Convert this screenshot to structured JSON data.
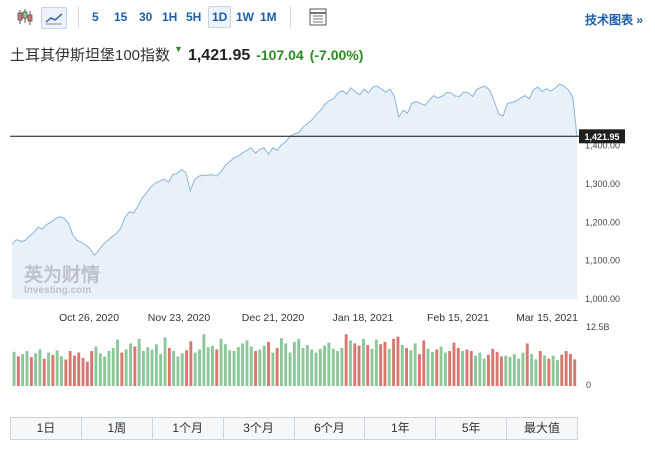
{
  "toolbar": {
    "intervals": [
      "5",
      "15",
      "30",
      "1H",
      "5H",
      "1D",
      "1W",
      "1M"
    ],
    "active_interval": "1D",
    "tech_chart_link": "技术图表 »"
  },
  "instrument": {
    "name": "土耳其伊斯坦堡100指数",
    "direction_icon": "down-arrow-icon",
    "price": "1,421.95",
    "change": "-107.04",
    "change_pct": "(-7.00%)",
    "down_color": "#2e8a22"
  },
  "watermark": {
    "brand": "英为财情",
    "sub": "Investing.com"
  },
  "range_buttons": [
    "1日",
    "1周",
    "1个月",
    "3个月",
    "6个月",
    "1年",
    "5年",
    "最大值"
  ],
  "chart_data": {
    "type": "area",
    "x_tick_labels": [
      "Oct 26, 2020",
      "Nov 23, 2020",
      "Dec 21, 2020",
      "Jan 18, 2021",
      "Feb 15, 2021",
      "Mar 15, 2021"
    ],
    "y_tick_labels": [
      "1,000.00",
      "1,100.00",
      "1,200.00",
      "1,300.00",
      "1,400.00"
    ],
    "ylim": [
      1000,
      1500
    ],
    "last_price_label": "1,421.95",
    "last_price": 1421.95,
    "line_color": "#8ab4dc",
    "fill_color": "#e8f0f8",
    "series": [
      {
        "values": [
          1140,
          1152,
          1148,
          1150,
          1162,
          1170,
          1185,
          1180,
          1192,
          1198,
          1207,
          1212,
          1208,
          1195,
          1165,
          1150,
          1145,
          1138,
          1128,
          1112,
          1125,
          1140,
          1150,
          1160,
          1168,
          1182,
          1210,
          1225,
          1222,
          1240,
          1262,
          1275,
          1290,
          1300,
          1305,
          1310,
          1302,
          1322,
          1325,
          1335,
          1328,
          1280,
          1308,
          1318,
          1320,
          1320,
          1322,
          1318,
          1328,
          1345,
          1355,
          1365,
          1370,
          1378,
          1385,
          1392,
          1378,
          1388,
          1392,
          1375,
          1392,
          1385,
          1400,
          1408,
          1422,
          1428,
          1432,
          1446,
          1455,
          1465,
          1478,
          1490,
          1505,
          1515,
          1520,
          1535,
          1541,
          1532,
          1548,
          1538,
          1530,
          1545,
          1535,
          1550,
          1553,
          1545,
          1537,
          1545,
          1525,
          1472,
          1490,
          1482,
          1508,
          1512,
          1508,
          1502,
          1516,
          1528,
          1522,
          1526,
          1536,
          1535,
          1527,
          1526,
          1538,
          1535,
          1526,
          1545,
          1550,
          1552,
          1541,
          1512,
          1480,
          1475,
          1508,
          1510,
          1514,
          1522,
          1528,
          1520,
          1544,
          1550,
          1539,
          1546,
          1540,
          1548,
          1558,
          1553,
          1543,
          1525,
          1421.95
        ]
      }
    ],
    "volume": {
      "axis_labels": [
        "12.5B",
        "0"
      ],
      "up_color": "#8cc79a",
      "down_color": "#d9776f",
      "values": [
        4.5,
        3.9,
        4.2,
        4.6,
        3.8,
        4.3,
        4.8,
        3.6,
        4.4,
        4.1,
        4.7,
        3.9,
        3.5,
        4.6,
        4.0,
        4.4,
        3.7,
        3.2,
        4.6,
        5.2,
        4.3,
        3.9,
        4.6,
        5.0,
        6.1,
        4.4,
        4.8,
        5.6,
        5.2,
        6.2,
        4.6,
        5.1,
        4.8,
        5.5,
        4.2,
        6.4,
        5.0,
        4.6,
        3.9,
        4.3,
        4.7,
        5.9,
        4.4,
        4.8,
        6.8,
        5.1,
        5.3,
        4.8,
        6.2,
        5.5,
        4.7,
        4.6,
        5.1,
        5.6,
        6.0,
        5.2,
        4.6,
        4.8,
        5.3,
        5.8,
        4.4,
        5.0,
        6.3,
        5.6,
        4.4,
        5.8,
        6.2,
        5.0,
        5.4,
        4.8,
        4.4,
        4.9,
        5.3,
        5.7,
        4.9,
        4.6,
        5.0,
        6.8,
        6.0,
        5.6,
        5.3,
        6.2,
        5.4,
        4.9,
        6.1,
        5.5,
        5.8,
        4.9,
        6.2,
        6.5,
        5.4,
        5.0,
        4.7,
        5.6,
        4.2,
        6.0,
        4.9,
        4.5,
        4.8,
        5.2,
        4.4,
        4.6,
        5.7,
        5.0,
        4.6,
        4.8,
        4.6,
        4.0,
        4.4,
        3.6,
        4.1,
        4.9,
        4.5,
        3.9,
        4.0,
        3.8,
        4.2,
        3.6,
        4.4,
        5.6,
        4.2,
        3.5,
        4.6,
        4.0,
        3.6,
        4.0,
        3.4,
        4.1,
        4.6,
        4.2,
        3.5
      ],
      "directions": [
        1,
        0,
        1,
        1,
        0,
        1,
        1,
        0,
        1,
        0,
        1,
        1,
        0,
        0,
        0,
        0,
        0,
        0,
        0,
        1,
        1,
        1,
        1,
        1,
        1,
        0,
        1,
        1,
        0,
        1,
        1,
        1,
        1,
        1,
        1,
        1,
        0,
        1,
        1,
        1,
        0,
        0,
        1,
        1,
        1,
        1,
        1,
        0,
        1,
        1,
        1,
        1,
        1,
        1,
        1,
        1,
        0,
        1,
        1,
        0,
        1,
        0,
        1,
        1,
        1,
        1,
        1,
        1,
        1,
        1,
        1,
        1,
        1,
        1,
        1,
        1,
        1,
        0,
        1,
        0,
        0,
        1,
        0,
        1,
        1,
        0,
        0,
        1,
        0,
        0,
        1,
        0,
        1,
        1,
        0,
        0,
        1,
        1,
        0,
        1,
        1,
        0,
        0,
        0,
        1,
        0,
        0,
        1,
        1,
        1,
        0,
        0,
        0,
        0,
        1,
        1,
        1,
        1,
        1,
        0,
        1,
        1,
        0,
        1,
        0,
        1,
        1,
        0,
        0,
        0,
        0
      ]
    }
  }
}
